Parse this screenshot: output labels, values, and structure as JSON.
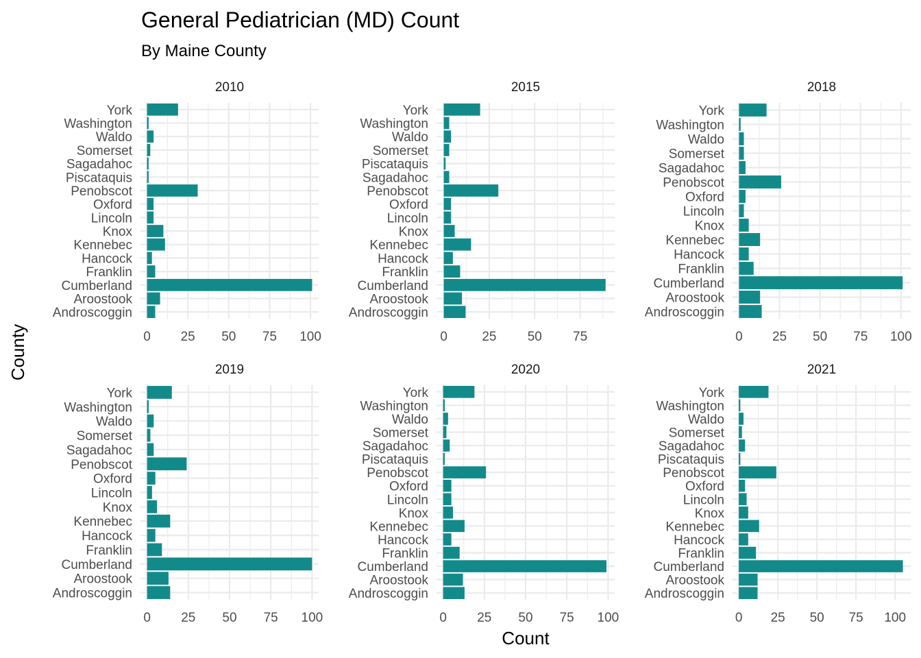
{
  "chart_data": {
    "type": "bar",
    "orientation": "horizontal",
    "title": "General Pediatrician (MD) Count",
    "subtitle": "By Maine County",
    "xlabel": "Count",
    "ylabel": "County",
    "bar_color": "#138a8a",
    "grid": true,
    "facets": [
      {
        "label": "2010",
        "xlim": [
          -4,
          105
        ],
        "xticks": [
          0,
          25,
          50,
          75,
          100
        ],
        "categories": [
          "Androscoggin",
          "Aroostook",
          "Cumberland",
          "Franklin",
          "Hancock",
          "Kennebec",
          "Knox",
          "Lincoln",
          "Oxford",
          "Penobscot",
          "Piscataquis",
          "Sagadahoc",
          "Somerset",
          "Waldo",
          "Washington",
          "York"
        ],
        "values": [
          5,
          8,
          101,
          5,
          3,
          11,
          10,
          4,
          4,
          31,
          1,
          1,
          2,
          4,
          1,
          19
        ]
      },
      {
        "label": "2015",
        "xlim": [
          -4,
          94
        ],
        "xticks": [
          0,
          25,
          50,
          75
        ],
        "categories": [
          "Androscoggin",
          "Aroostook",
          "Cumberland",
          "Franklin",
          "Hancock",
          "Kennebec",
          "Knox",
          "Lincoln",
          "Oxford",
          "Penobscot",
          "Sagadahoc",
          "Piscataquis",
          "Somerset",
          "Waldo",
          "Washington",
          "York"
        ],
        "values": [
          12,
          10,
          89,
          9,
          5,
          15,
          6,
          4,
          4,
          30,
          3,
          1,
          3,
          4,
          3,
          20
        ]
      },
      {
        "label": "2018",
        "xlim": [
          -4,
          106
        ],
        "xticks": [
          0,
          25,
          50,
          75,
          100
        ],
        "categories": [
          "Androscoggin",
          "Aroostook",
          "Cumberland",
          "Franklin",
          "Hancock",
          "Kennebec",
          "Knox",
          "Lincoln",
          "Oxford",
          "Penobscot",
          "Sagadahoc",
          "Somerset",
          "Waldo",
          "Washington",
          "York"
        ],
        "values": [
          14,
          13,
          101,
          9,
          6,
          13,
          6,
          3,
          4,
          26,
          4,
          3,
          3,
          1,
          17
        ]
      },
      {
        "label": "2019",
        "xlim": [
          -4,
          104
        ],
        "xticks": [
          0,
          25,
          50,
          75,
          100
        ],
        "categories": [
          "Androscoggin",
          "Aroostook",
          "Cumberland",
          "Franklin",
          "Hancock",
          "Kennebec",
          "Knox",
          "Lincoln",
          "Oxford",
          "Penobscot",
          "Sagadahoc",
          "Somerset",
          "Waldo",
          "Washington",
          "York"
        ],
        "values": [
          14,
          13,
          100,
          9,
          5,
          14,
          6,
          3,
          5,
          24,
          4,
          2,
          4,
          1,
          15
        ]
      },
      {
        "label": "2020",
        "xlim": [
          -4,
          104
        ],
        "xticks": [
          0,
          25,
          50,
          75,
          100
        ],
        "categories": [
          "Androscoggin",
          "Aroostook",
          "Cumberland",
          "Franklin",
          "Hancock",
          "Kennebec",
          "Knox",
          "Lincoln",
          "Oxford",
          "Penobscot",
          "Piscataquis",
          "Sagadahoc",
          "Somerset",
          "Waldo",
          "Washington",
          "York"
        ],
        "values": [
          13,
          12,
          99,
          10,
          5,
          13,
          6,
          5,
          5,
          26,
          1,
          4,
          2,
          3,
          1,
          19
        ]
      },
      {
        "label": "2021",
        "xlim": [
          -4,
          110
        ],
        "xticks": [
          0,
          25,
          50,
          75,
          100
        ],
        "categories": [
          "Androscoggin",
          "Aroostook",
          "Cumberland",
          "Franklin",
          "Hancock",
          "Kennebec",
          "Knox",
          "Lincoln",
          "Oxford",
          "Penobscot",
          "Piscataquis",
          "Sagadahoc",
          "Somerset",
          "Waldo",
          "Washington",
          "York"
        ],
        "values": [
          12,
          12,
          105,
          11,
          6,
          13,
          6,
          5,
          4,
          24,
          1,
          4,
          2,
          3,
          1,
          19
        ]
      }
    ]
  }
}
